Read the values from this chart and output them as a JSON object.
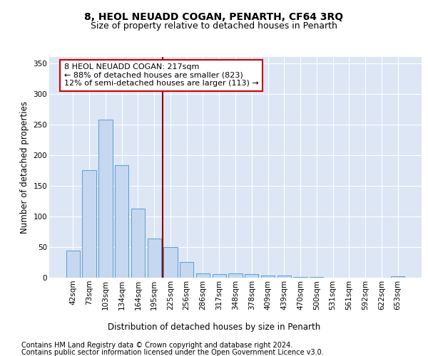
{
  "title": "8, HEOL NEUADD COGAN, PENARTH, CF64 3RQ",
  "subtitle": "Size of property relative to detached houses in Penarth",
  "xlabel": "Distribution of detached houses by size in Penarth",
  "ylabel": "Number of detached properties",
  "categories": [
    "42sqm",
    "73sqm",
    "103sqm",
    "134sqm",
    "164sqm",
    "195sqm",
    "225sqm",
    "256sqm",
    "286sqm",
    "317sqm",
    "348sqm",
    "378sqm",
    "409sqm",
    "439sqm",
    "470sqm",
    "500sqm",
    "531sqm",
    "561sqm",
    "592sqm",
    "622sqm",
    "653sqm"
  ],
  "values": [
    44,
    175,
    258,
    183,
    113,
    64,
    50,
    25,
    7,
    6,
    7,
    6,
    4,
    3,
    1,
    1,
    0,
    0,
    0,
    0,
    2
  ],
  "bar_color": "#c5d8f0",
  "bar_edge_color": "#5b9bd5",
  "vline_color": "#8b0000",
  "annotation_line1": "8 HEOL NEUADD COGAN: 217sqm",
  "annotation_line2": "← 88% of detached houses are smaller (823)",
  "annotation_line3": "12% of semi-detached houses are larger (113) →",
  "annotation_box_color": "white",
  "annotation_box_edge_color": "#cc0000",
  "ylim": [
    0,
    360
  ],
  "yticks": [
    0,
    50,
    100,
    150,
    200,
    250,
    300,
    350
  ],
  "plot_bg_color": "#dce6f5",
  "grid_color": "#ffffff",
  "footer_line1": "Contains HM Land Registry data © Crown copyright and database right 2024.",
  "footer_line2": "Contains public sector information licensed under the Open Government Licence v3.0.",
  "title_fontsize": 10,
  "subtitle_fontsize": 9,
  "axis_label_fontsize": 8.5,
  "tick_fontsize": 7.5,
  "annotation_fontsize": 8,
  "footer_fontsize": 7
}
